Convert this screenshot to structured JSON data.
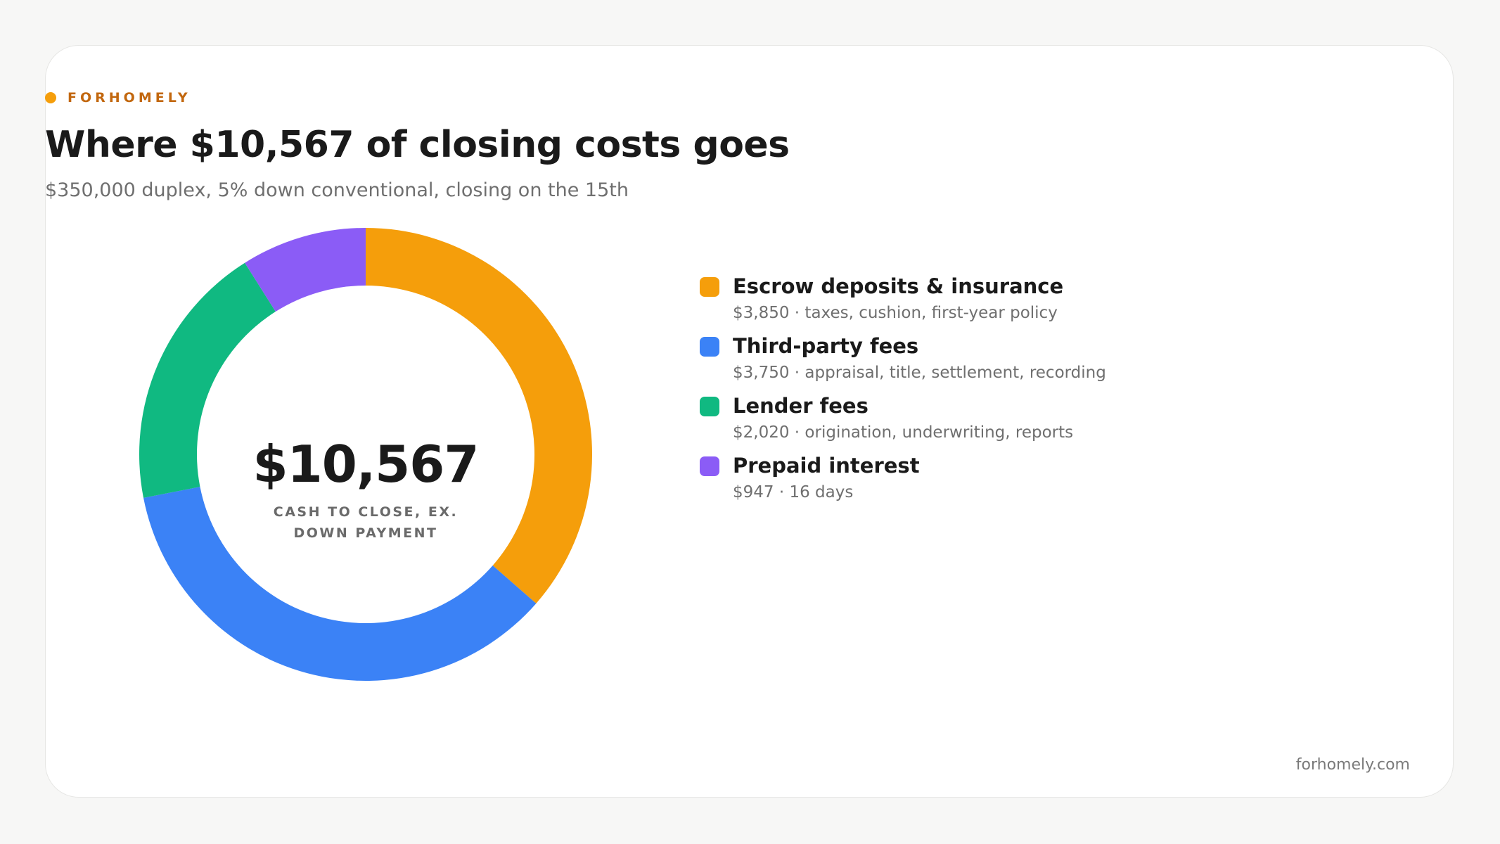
{
  "brand": {
    "name": "FORHOMELY",
    "color": "#c2670e",
    "dot_color": "#f59e0b"
  },
  "header": {
    "title": "Where $10,567 of closing costs goes",
    "subtitle": "$350,000 duplex, 5% down conventional, closing on the 15th"
  },
  "chart_data": {
    "type": "pie",
    "variant": "donut",
    "title": "Where $10,567 of closing costs goes",
    "subtitle": "$350,000 duplex, 5% down conventional, closing on the 15th",
    "center_value": "$10,567",
    "center_label": "CASH TO CLOSE, EX. DOWN PAYMENT",
    "total": 10567,
    "legend_position": "right",
    "slices": [
      {
        "label": "Escrow deposits & insurance",
        "value": 3850,
        "value_label": "$3,850",
        "detail": "taxes, cushion, first-year policy",
        "color": "#f59e0b"
      },
      {
        "label": "Third-party fees",
        "value": 3750,
        "value_label": "$3,750",
        "detail": "appraisal, title, settlement, recording",
        "color": "#3b82f6"
      },
      {
        "label": "Lender fees",
        "value": 2020,
        "value_label": "$2,020",
        "detail": "origination, underwriting, reports",
        "color": "#10b981"
      },
      {
        "label": "Prepaid interest",
        "value": 947,
        "value_label": "$947",
        "detail": "16 days",
        "color": "#8b5cf6"
      }
    ]
  },
  "footer": {
    "site": "forhomely.com"
  }
}
